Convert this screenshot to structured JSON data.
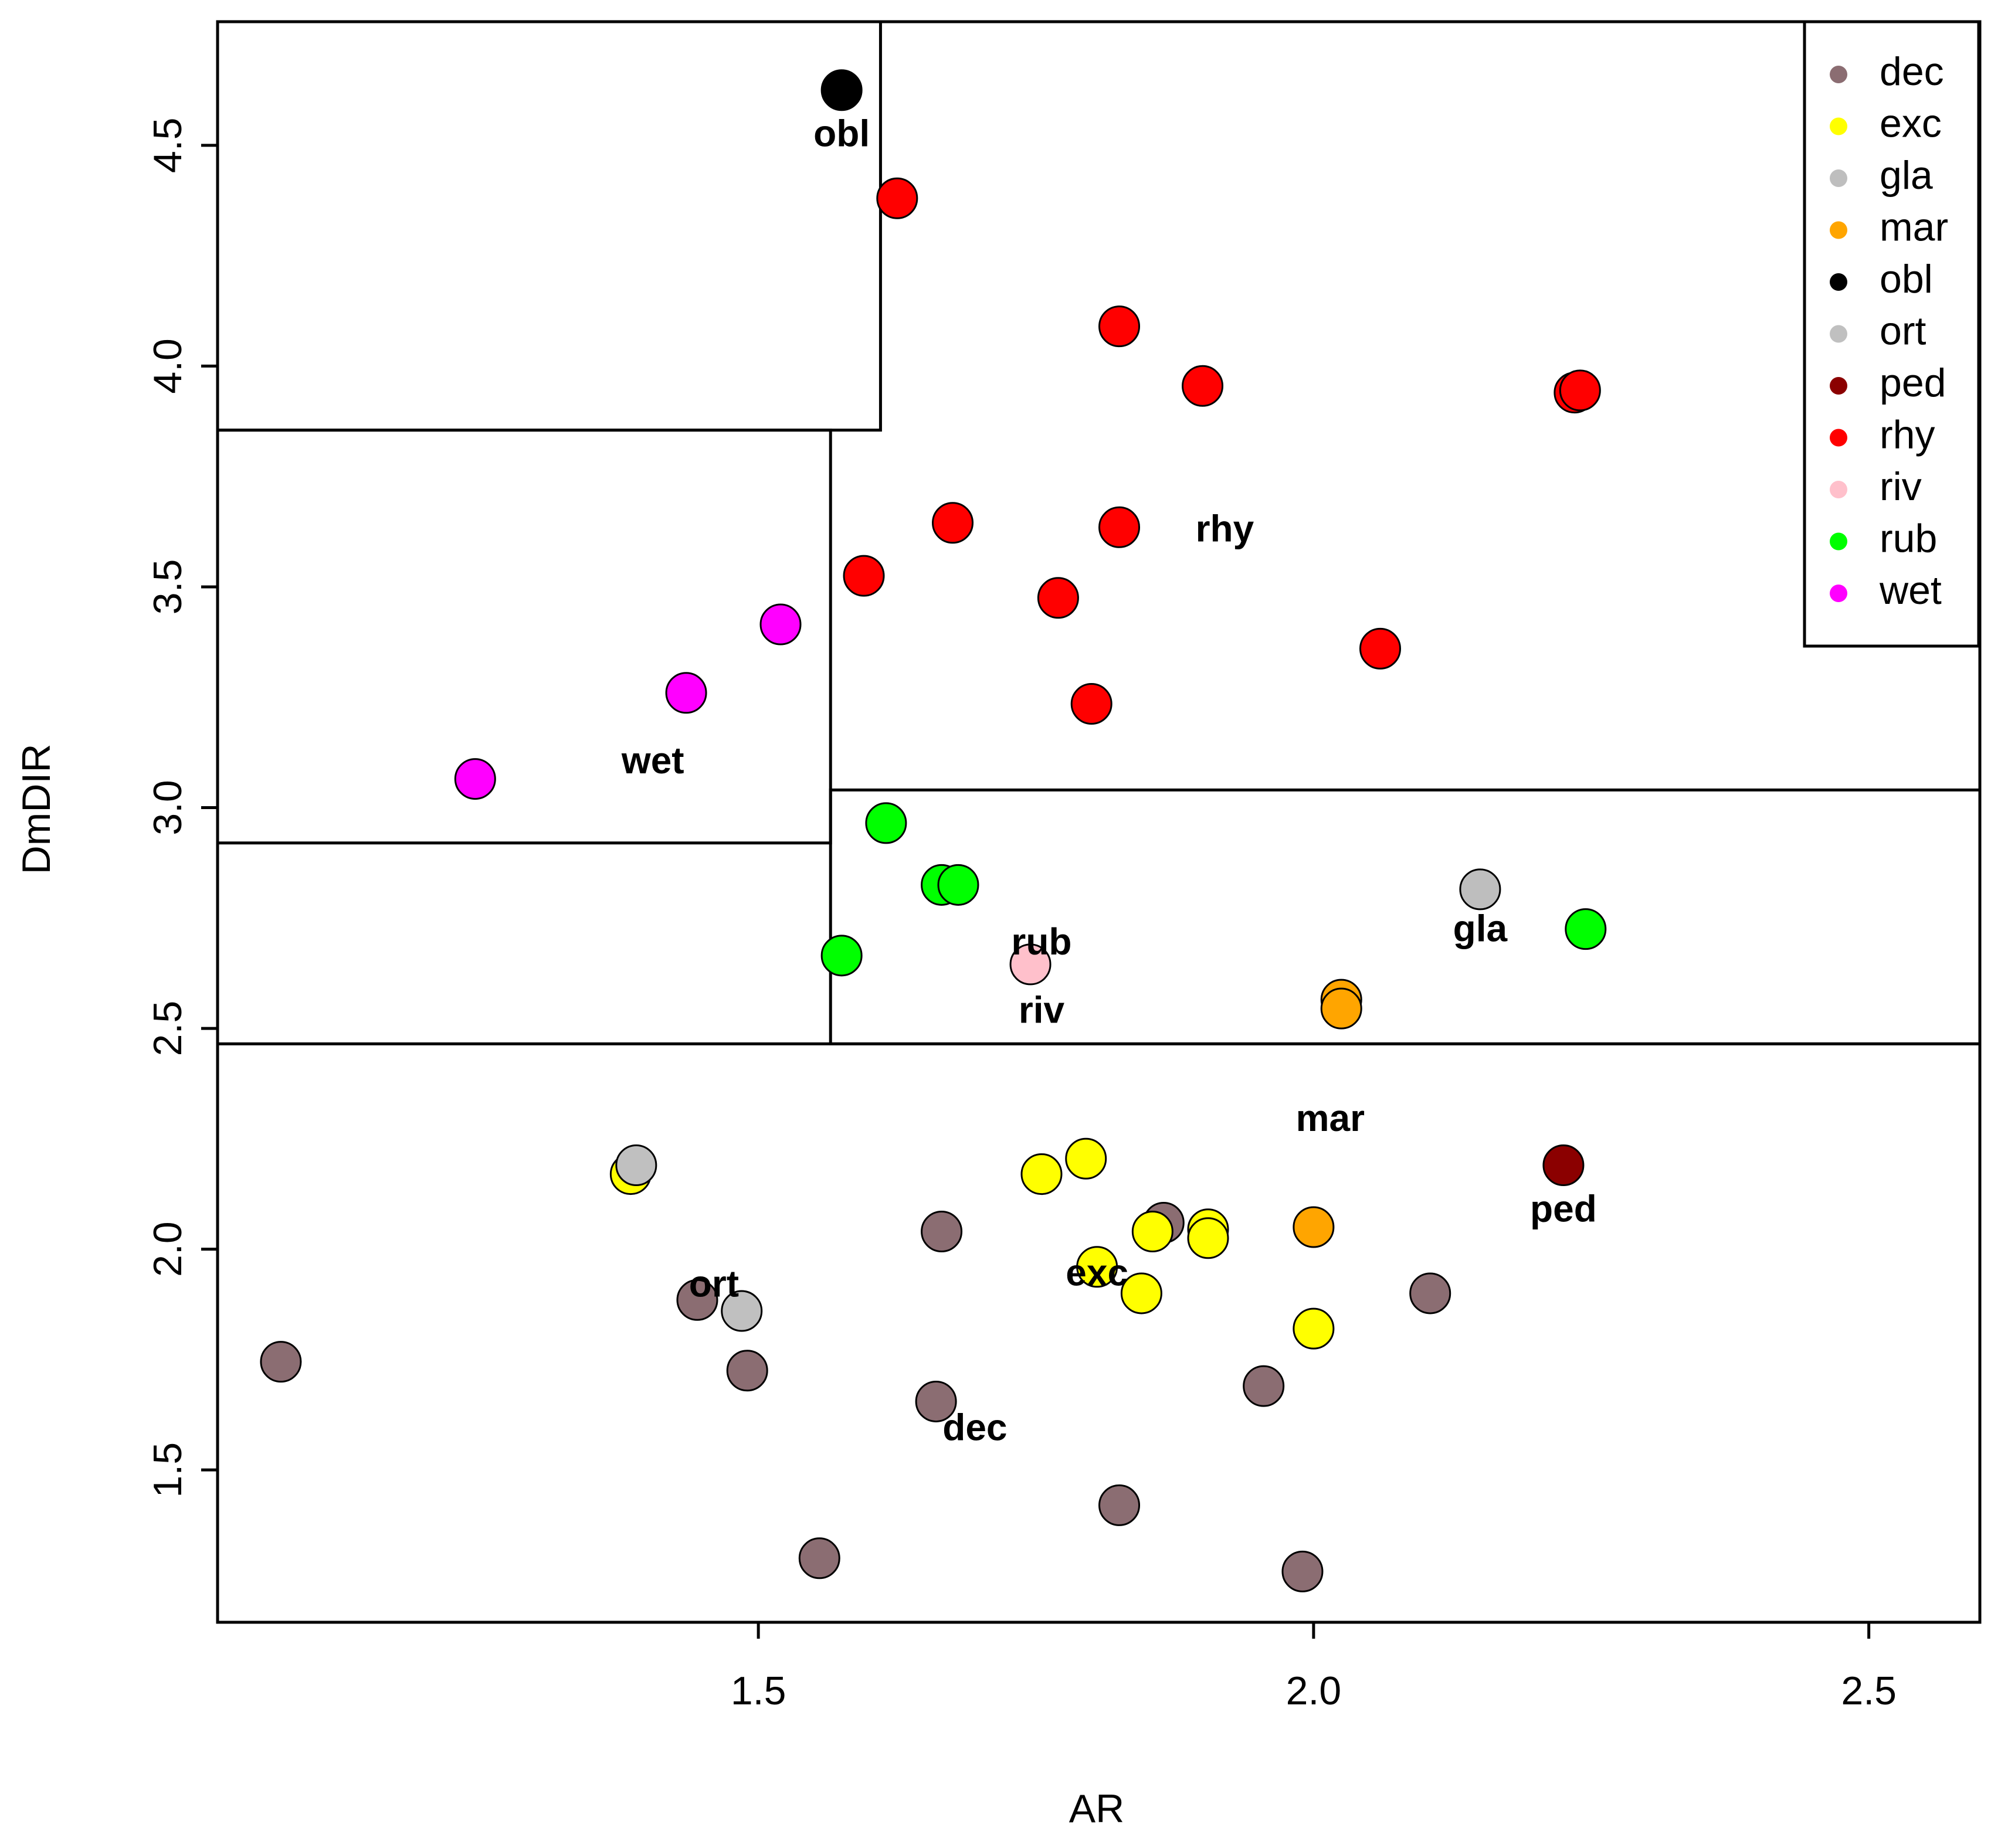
{
  "chart_data": {
    "type": "scatter",
    "xlabel": "AR",
    "ylabel": "DmDIR",
    "xlim": [
      1.013,
      2.6
    ],
    "ylim": [
      1.155,
      4.78
    ],
    "x_ticks": [
      {
        "value": 1.5,
        "label": "1.5"
      },
      {
        "value": 2.0,
        "label": "2.0"
      },
      {
        "value": 2.5,
        "label": "2.5"
      }
    ],
    "y_ticks": [
      {
        "value": 1.5,
        "label": "1.5"
      },
      {
        "value": 2.0,
        "label": "2.0"
      },
      {
        "value": 2.5,
        "label": "2.5"
      },
      {
        "value": 3.0,
        "label": "3.0"
      },
      {
        "value": 3.5,
        "label": "3.5"
      },
      {
        "value": 4.0,
        "label": "4.0"
      },
      {
        "value": 4.5,
        "label": "4.5"
      }
    ],
    "legend_position": "top-right",
    "legend": [
      {
        "name": "dec",
        "color": "#8B6D72"
      },
      {
        "name": "exc",
        "color": "#FFFF00"
      },
      {
        "name": "gla",
        "color": "#BEBEBE"
      },
      {
        "name": "mar",
        "color": "#FFA500"
      },
      {
        "name": "obl",
        "color": "#000000"
      },
      {
        "name": "ort",
        "color": "#C0C0C0"
      },
      {
        "name": "ped",
        "color": "#8B0000"
      },
      {
        "name": "rhy",
        "color": "#FF0000"
      },
      {
        "name": "riv",
        "color": "#FFC0CB"
      },
      {
        "name": "rub",
        "color": "#00FF00"
      },
      {
        "name": "wet",
        "color": "#FF00FF"
      }
    ],
    "regions": [
      {
        "x0": 1.013,
        "x1": 1.61,
        "y0": 3.855,
        "y1": 4.78
      },
      {
        "x0": 1.013,
        "x1": 1.565,
        "y0": 2.92,
        "y1": 3.855
      },
      {
        "x0": 1.565,
        "x1": 2.6,
        "y0": 2.465,
        "y1": 3.04
      },
      {
        "x0": 1.013,
        "x1": 2.6,
        "y0": 1.155,
        "y1": 2.465
      }
    ],
    "series": [
      {
        "name": "dec",
        "color": "#8B6D72",
        "points": [
          [
            1.07,
            1.745
          ],
          [
            1.445,
            1.885
          ],
          [
            1.49,
            1.725
          ],
          [
            1.555,
            1.3
          ],
          [
            1.66,
            1.655
          ],
          [
            1.665,
            2.04
          ],
          [
            1.825,
            1.42
          ],
          [
            1.865,
            2.06
          ],
          [
            1.955,
            1.69
          ],
          [
            1.99,
            1.27
          ],
          [
            2.105,
            1.9
          ]
        ]
      },
      {
        "name": "exc",
        "color": "#FFFF00",
        "points": [
          [
            1.385,
            2.17
          ],
          [
            1.755,
            2.17
          ],
          [
            1.795,
            2.205
          ],
          [
            1.805,
            1.96
          ],
          [
            1.845,
            1.9
          ],
          [
            1.855,
            2.04
          ],
          [
            1.905,
            2.045
          ],
          [
            1.905,
            2.025
          ],
          [
            2.0,
            1.82
          ]
        ]
      },
      {
        "name": "ort",
        "color": "#C0C0C0",
        "points": [
          [
            1.39,
            2.19
          ],
          [
            1.485,
            1.86
          ]
        ]
      },
      {
        "name": "gla",
        "color": "#BEBEBE",
        "points": [
          [
            2.15,
            2.815
          ]
        ]
      },
      {
        "name": "mar",
        "color": "#FFA500",
        "points": [
          [
            2.0,
            2.05
          ],
          [
            2.025,
            2.565
          ],
          [
            2.025,
            2.545
          ]
        ]
      },
      {
        "name": "obl",
        "color": "#000000",
        "points": [
          [
            1.575,
            4.625
          ]
        ]
      },
      {
        "name": "ped",
        "color": "#8B0000",
        "points": [
          [
            2.225,
            2.19
          ]
        ]
      },
      {
        "name": "rhy",
        "color": "#FF0000",
        "points": [
          [
            1.625,
            4.38
          ],
          [
            1.595,
            3.525
          ],
          [
            1.675,
            3.645
          ],
          [
            1.77,
            3.475
          ],
          [
            1.8,
            3.235
          ],
          [
            1.825,
            4.09
          ],
          [
            1.825,
            3.635
          ],
          [
            1.9,
            3.955
          ],
          [
            2.06,
            3.36
          ],
          [
            2.235,
            3.94
          ],
          [
            2.24,
            3.945
          ]
        ]
      },
      {
        "name": "riv",
        "color": "#FFC0CB",
        "points": [
          [
            1.745,
            2.645
          ]
        ]
      },
      {
        "name": "rub",
        "color": "#00FF00",
        "points": [
          [
            1.575,
            2.665
          ],
          [
            1.615,
            2.965
          ],
          [
            1.665,
            2.825
          ],
          [
            1.68,
            2.825
          ],
          [
            2.245,
            2.725
          ]
        ]
      },
      {
        "name": "wet",
        "color": "#FF00FF",
        "points": [
          [
            1.245,
            3.065
          ],
          [
            1.435,
            3.26
          ],
          [
            1.52,
            3.415
          ]
        ]
      }
    ],
    "annotations": [
      {
        "text": "obl",
        "x": 1.575,
        "y": 4.52
      },
      {
        "text": "rhy",
        "x": 1.92,
        "y": 3.625
      },
      {
        "text": "wet",
        "x": 1.405,
        "y": 3.1
      },
      {
        "text": "rub",
        "x": 1.755,
        "y": 2.69
      },
      {
        "text": "riv",
        "x": 1.755,
        "y": 2.535
      },
      {
        "text": "gla",
        "x": 2.15,
        "y": 2.72
      },
      {
        "text": "mar",
        "x": 2.015,
        "y": 2.29
      },
      {
        "text": "ped",
        "x": 2.225,
        "y": 2.085
      },
      {
        "text": "exc",
        "x": 1.805,
        "y": 1.94
      },
      {
        "text": "ort",
        "x": 1.46,
        "y": 1.915
      },
      {
        "text": "dec",
        "x": 1.695,
        "y": 1.59
      }
    ]
  }
}
